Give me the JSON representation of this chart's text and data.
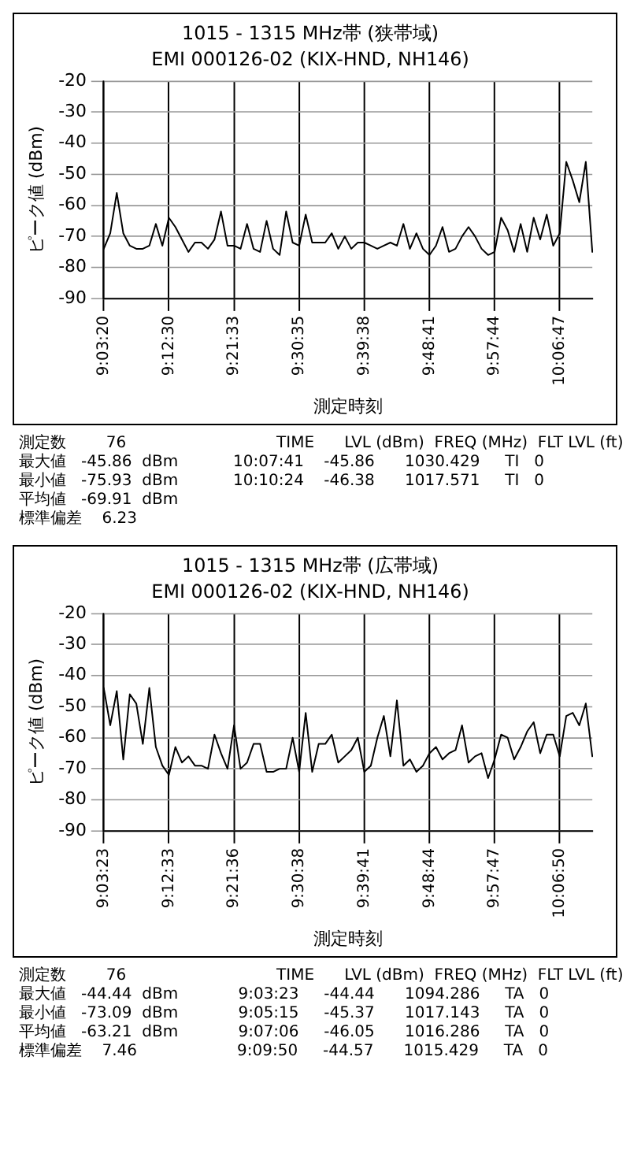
{
  "chart_data": [
    {
      "type": "line",
      "title": "1015 - 1315 MHz帯 (狭帯域)",
      "subtitle": "EMI 000126-02 (KIX-HND, NH146)",
      "xlabel": "測定時刻",
      "ylabel": "ピーク値 (dBm)",
      "categories": [
        "9:03:20",
        null,
        null,
        null,
        null,
        null,
        null,
        null,
        null,
        null,
        "9:12:30",
        null,
        null,
        null,
        null,
        null,
        null,
        null,
        null,
        null,
        "9:21:33",
        null,
        null,
        null,
        null,
        null,
        null,
        null,
        null,
        null,
        "9:30:35",
        null,
        null,
        null,
        null,
        null,
        null,
        null,
        null,
        null,
        "9:39:38",
        null,
        null,
        null,
        null,
        null,
        null,
        null,
        null,
        null,
        "9:48:41",
        null,
        null,
        null,
        null,
        null,
        null,
        null,
        null,
        null,
        "9:57:44",
        null,
        null,
        null,
        null,
        null,
        null,
        null,
        null,
        null,
        "10:06:47",
        null,
        null,
        null,
        null,
        null
      ],
      "series": [
        {
          "color": "#000000",
          "values": [
            -74,
            -69,
            -56,
            -69,
            -73,
            -74,
            -74,
            -73,
            -66,
            -73,
            -64,
            -67,
            -71,
            -75,
            -72,
            -72,
            -74,
            -71,
            -62,
            -73,
            -73,
            -74,
            -66,
            -74,
            -75,
            -65,
            -74,
            -76,
            -62,
            -72,
            -73,
            -63,
            -72,
            -72,
            -72,
            -69,
            -74,
            -70,
            -74,
            -72,
            -72,
            -73,
            -74,
            -73,
            -72,
            -73,
            -66,
            -74,
            -69,
            -74,
            -76,
            -73,
            -67,
            -75,
            -74,
            -70,
            -67,
            -70,
            -74,
            -76,
            -75,
            -64,
            -68,
            -75,
            -66,
            -75,
            -64,
            -71,
            -63,
            -73,
            -69,
            -46,
            -52,
            -59,
            -46,
            -75
          ]
        }
      ],
      "ylim": [
        -90,
        -20
      ],
      "yticks": [
        -20,
        -30,
        -40,
        -50,
        -60,
        -70,
        -80,
        -90
      ],
      "grid": true,
      "marker": "none",
      "line_style": "solid",
      "annotations": [
        "測定数        76                              TIME      LVL (dBm)  FREQ (MHz)  FLT LVL (ft)",
        "最大値   -45.86  dBm           10:07:41    -45.86      1030.429     TI   0",
        "最小値   -75.93  dBm           10:10:24    -46.38      1017.571     TI   0",
        "平均値   -69.91  dBm",
        "標準偏差    6.23"
      ]
    },
    {
      "type": "line",
      "title": "1015 - 1315 MHz帯 (広帯域)",
      "subtitle": "EMI 000126-02 (KIX-HND, NH146)",
      "xlabel": "測定時刻",
      "ylabel": "ピーク値 (dBm)",
      "categories": [
        "9:03:23",
        null,
        null,
        null,
        null,
        null,
        null,
        null,
        null,
        null,
        "9:12:33",
        null,
        null,
        null,
        null,
        null,
        null,
        null,
        null,
        null,
        "9:21:36",
        null,
        null,
        null,
        null,
        null,
        null,
        null,
        null,
        null,
        "9:30:38",
        null,
        null,
        null,
        null,
        null,
        null,
        null,
        null,
        null,
        "9:39:41",
        null,
        null,
        null,
        null,
        null,
        null,
        null,
        null,
        null,
        "9:48:44",
        null,
        null,
        null,
        null,
        null,
        null,
        null,
        null,
        null,
        "9:57:47",
        null,
        null,
        null,
        null,
        null,
        null,
        null,
        null,
        null,
        "10:06:50",
        null,
        null,
        null,
        null,
        null
      ],
      "series": [
        {
          "color": "#000000",
          "values": [
            -44,
            -56,
            -45,
            -67,
            -46,
            -49,
            -62,
            -44,
            -63,
            -69,
            -72,
            -63,
            -68,
            -66,
            -69,
            -69,
            -70,
            -59,
            -65,
            -70,
            -56,
            -70,
            -68,
            -62,
            -62,
            -71,
            -71,
            -70,
            -70,
            -60,
            -71,
            -52,
            -71,
            -62,
            -62,
            -59,
            -68,
            -66,
            -64,
            -60,
            -71,
            -69,
            -60,
            -53,
            -66,
            -48,
            -69,
            -67,
            -71,
            -69,
            -65,
            -63,
            -67,
            -65,
            -64,
            -56,
            -68,
            -66,
            -65,
            -73,
            -67,
            -59,
            -60,
            -67,
            -63,
            -58,
            -55,
            -65,
            -59,
            -59,
            -66,
            -53,
            -52,
            -56,
            -49,
            -66
          ]
        }
      ],
      "ylim": [
        -90,
        -20
      ],
      "yticks": [
        -20,
        -30,
        -40,
        -50,
        -60,
        -70,
        -80,
        -90
      ],
      "grid": true,
      "marker": "none",
      "line_style": "solid",
      "annotations": [
        "測定数        76                              TIME      LVL (dBm)  FREQ (MHz)  FLT LVL (ft)",
        "最大値   -44.44  dBm            9:03:23     -44.44      1094.286     TA   0",
        "最小値   -73.09  dBm            9:05:15     -45.37      1017.143     TA   0",
        "平均値   -63.21  dBm            9:07:06     -46.05      1016.286     TA   0",
        "標準偏差    7.46                    9:09:50     -44.57      1015.429     TA   0"
      ]
    }
  ]
}
